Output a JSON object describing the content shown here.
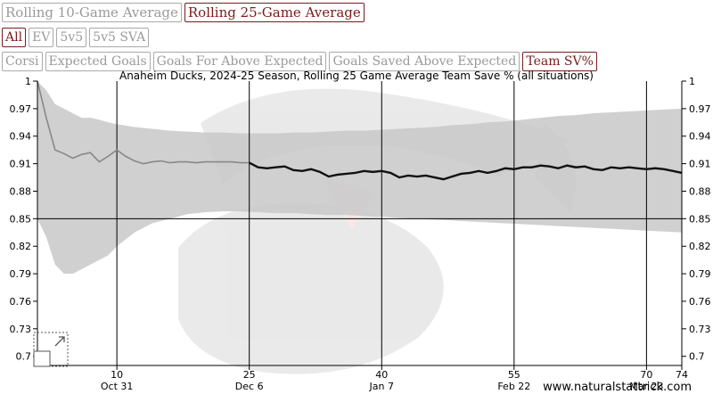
{
  "buttons": {
    "rolling": [
      {
        "label": "Rolling 10-Game Average",
        "active": false
      },
      {
        "label": "Rolling 25-Game Average",
        "active": true
      }
    ],
    "situations": [
      {
        "label": "All",
        "active": true
      },
      {
        "label": "EV",
        "active": false
      },
      {
        "label": "5v5",
        "active": false
      },
      {
        "label": "5v5 SVA",
        "active": false
      }
    ],
    "metrics": [
      {
        "label": "Corsi",
        "active": false
      },
      {
        "label": "Expected Goals",
        "active": false
      },
      {
        "label": "Goals For Above Expected",
        "active": false
      },
      {
        "label": "Goals Saved Above Expected",
        "active": false
      },
      {
        "label": "Team SV%",
        "active": true
      }
    ]
  },
  "watermark": "www.naturalstattrick.com",
  "chart_data": {
    "type": "line",
    "title": "Anaheim Ducks, 2024-25 Season, Rolling 25 Game Average Team Save % (all situations)",
    "xlim": [
      1,
      74
    ],
    "ylim": [
      0.69,
      1.0
    ],
    "y_ticks": [
      0.7,
      0.73,
      0.76,
      0.79,
      0.82,
      0.85,
      0.88,
      0.91,
      0.94,
      0.97,
      1
    ],
    "y_tick_labels": [
      "0.7",
      "0.73",
      "0.76",
      "0.79",
      "0.82",
      "0.85",
      "0.88",
      "0.91",
      "0.94",
      "0.97",
      "1"
    ],
    "x_ticks": [
      {
        "value": 10,
        "label": "10",
        "date": "Oct 31"
      },
      {
        "value": 25,
        "label": "25",
        "date": "Dec 6"
      },
      {
        "value": 40,
        "label": "40",
        "date": "Jan 7"
      },
      {
        "value": 55,
        "label": "55",
        "date": "Feb 22"
      },
      {
        "value": 70,
        "label": "70",
        "date": "Mar 23"
      },
      {
        "value": 74,
        "label": "74",
        "date": ""
      }
    ],
    "reference_line": 0.85,
    "grid": true,
    "band": {
      "x": [
        1,
        2,
        3,
        4,
        5,
        6,
        7,
        8,
        9,
        10,
        12,
        14,
        16,
        18,
        20,
        22,
        24,
        26,
        28,
        30,
        32,
        34,
        36,
        38,
        40,
        42,
        44,
        46,
        48,
        50,
        52,
        54,
        56,
        58,
        60,
        62,
        64,
        66,
        68,
        70,
        72,
        74
      ],
      "upper": [
        1.0,
        0.99,
        0.975,
        0.97,
        0.965,
        0.96,
        0.96,
        0.958,
        0.955,
        0.953,
        0.95,
        0.948,
        0.946,
        0.945,
        0.944,
        0.944,
        0.943,
        0.943,
        0.943,
        0.944,
        0.944,
        0.945,
        0.946,
        0.946,
        0.947,
        0.948,
        0.949,
        0.95,
        0.952,
        0.953,
        0.955,
        0.956,
        0.958,
        0.96,
        0.962,
        0.963,
        0.965,
        0.966,
        0.967,
        0.968,
        0.969,
        0.97
      ],
      "lower": [
        0.85,
        0.83,
        0.8,
        0.79,
        0.79,
        0.795,
        0.8,
        0.805,
        0.81,
        0.82,
        0.835,
        0.845,
        0.85,
        0.855,
        0.857,
        0.858,
        0.858,
        0.857,
        0.856,
        0.856,
        0.855,
        0.854,
        0.854,
        0.853,
        0.852,
        0.851,
        0.85,
        0.849,
        0.848,
        0.847,
        0.846,
        0.845,
        0.844,
        0.843,
        0.842,
        0.841,
        0.84,
        0.839,
        0.838,
        0.837,
        0.836,
        0.835
      ]
    },
    "series": [
      {
        "x": [
          1,
          2,
          3,
          4,
          5,
          6,
          7,
          8,
          9,
          10,
          11,
          12,
          13,
          14,
          15,
          16,
          17,
          18,
          19,
          20,
          21,
          22,
          23,
          24,
          25
        ],
        "y": [
          1.0,
          0.96,
          0.925,
          0.921,
          0.916,
          0.92,
          0.922,
          0.912,
          0.918,
          0.925,
          0.918,
          0.913,
          0.91,
          0.912,
          0.913,
          0.911,
          0.912,
          0.912,
          0.911,
          0.912,
          0.912,
          0.912,
          0.912,
          0.911,
          0.911
        ],
        "color": "#888888",
        "style": "early"
      },
      {
        "x": [
          25,
          26,
          27,
          28,
          29,
          30,
          31,
          32,
          33,
          34,
          35,
          36,
          37,
          38,
          39,
          40,
          41,
          42,
          43,
          44,
          45,
          46,
          47,
          48,
          49,
          50,
          51,
          52,
          53,
          54,
          55,
          56,
          57,
          58,
          59,
          60,
          61,
          62,
          63,
          64,
          65,
          66,
          67,
          68,
          69,
          70,
          71,
          72,
          73,
          74
        ],
        "y": [
          0.911,
          0.906,
          0.905,
          0.906,
          0.907,
          0.903,
          0.902,
          0.904,
          0.901,
          0.896,
          0.898,
          0.899,
          0.9,
          0.902,
          0.901,
          0.902,
          0.9,
          0.895,
          0.897,
          0.896,
          0.897,
          0.895,
          0.893,
          0.896,
          0.899,
          0.9,
          0.902,
          0.9,
          0.902,
          0.905,
          0.904,
          0.906,
          0.906,
          0.908,
          0.907,
          0.905,
          0.908,
          0.906,
          0.907,
          0.904,
          0.903,
          0.906,
          0.905,
          0.906,
          0.905,
          0.904,
          0.905,
          0.904,
          0.902,
          0.9
        ],
        "color": "#111111",
        "style": "main"
      }
    ],
    "colors": {
      "band": "#c8c8c8",
      "axis": "#000000",
      "grid": "#000000",
      "watermark_red": "#c0392b"
    }
  }
}
